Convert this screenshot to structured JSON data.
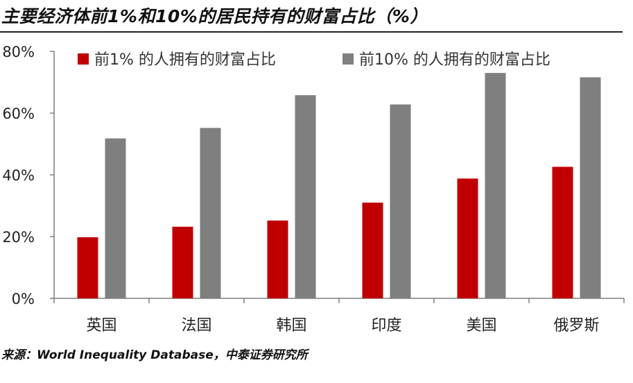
{
  "title": "主要经济体前1%和10%的居民持有的财富占比（%）",
  "source": "来源：World Inequality Database，中泰证券研究所",
  "colors": {
    "series_1": "#c00000",
    "series_2": "#7f7f7f",
    "axis": "#7f7f7f"
  },
  "chart_data": {
    "type": "bar",
    "title": "主要经济体前1%和10%的居民持有的财富占比（%）",
    "xlabel": "",
    "ylabel": "",
    "categories": [
      "英国",
      "法国",
      "韩国",
      "印度",
      "美国",
      "俄罗斯"
    ],
    "series": [
      {
        "name": "前1% 的人拥有的财富占比",
        "values": [
          19.8,
          23.2,
          25.2,
          31.0,
          38.8,
          42.6
        ],
        "color": "#c00000"
      },
      {
        "name": "前10% 的人拥有的财富占比",
        "values": [
          51.8,
          55.2,
          65.8,
          62.8,
          73.0,
          71.6
        ],
        "color": "#7f7f7f"
      }
    ],
    "ylim": [
      0,
      80
    ],
    "yticks": [
      0,
      20,
      40,
      60,
      80
    ],
    "ytick_labels": [
      "0%",
      "20%",
      "40%",
      "60%",
      "80%"
    ],
    "grid": false,
    "legend_position": "top"
  }
}
